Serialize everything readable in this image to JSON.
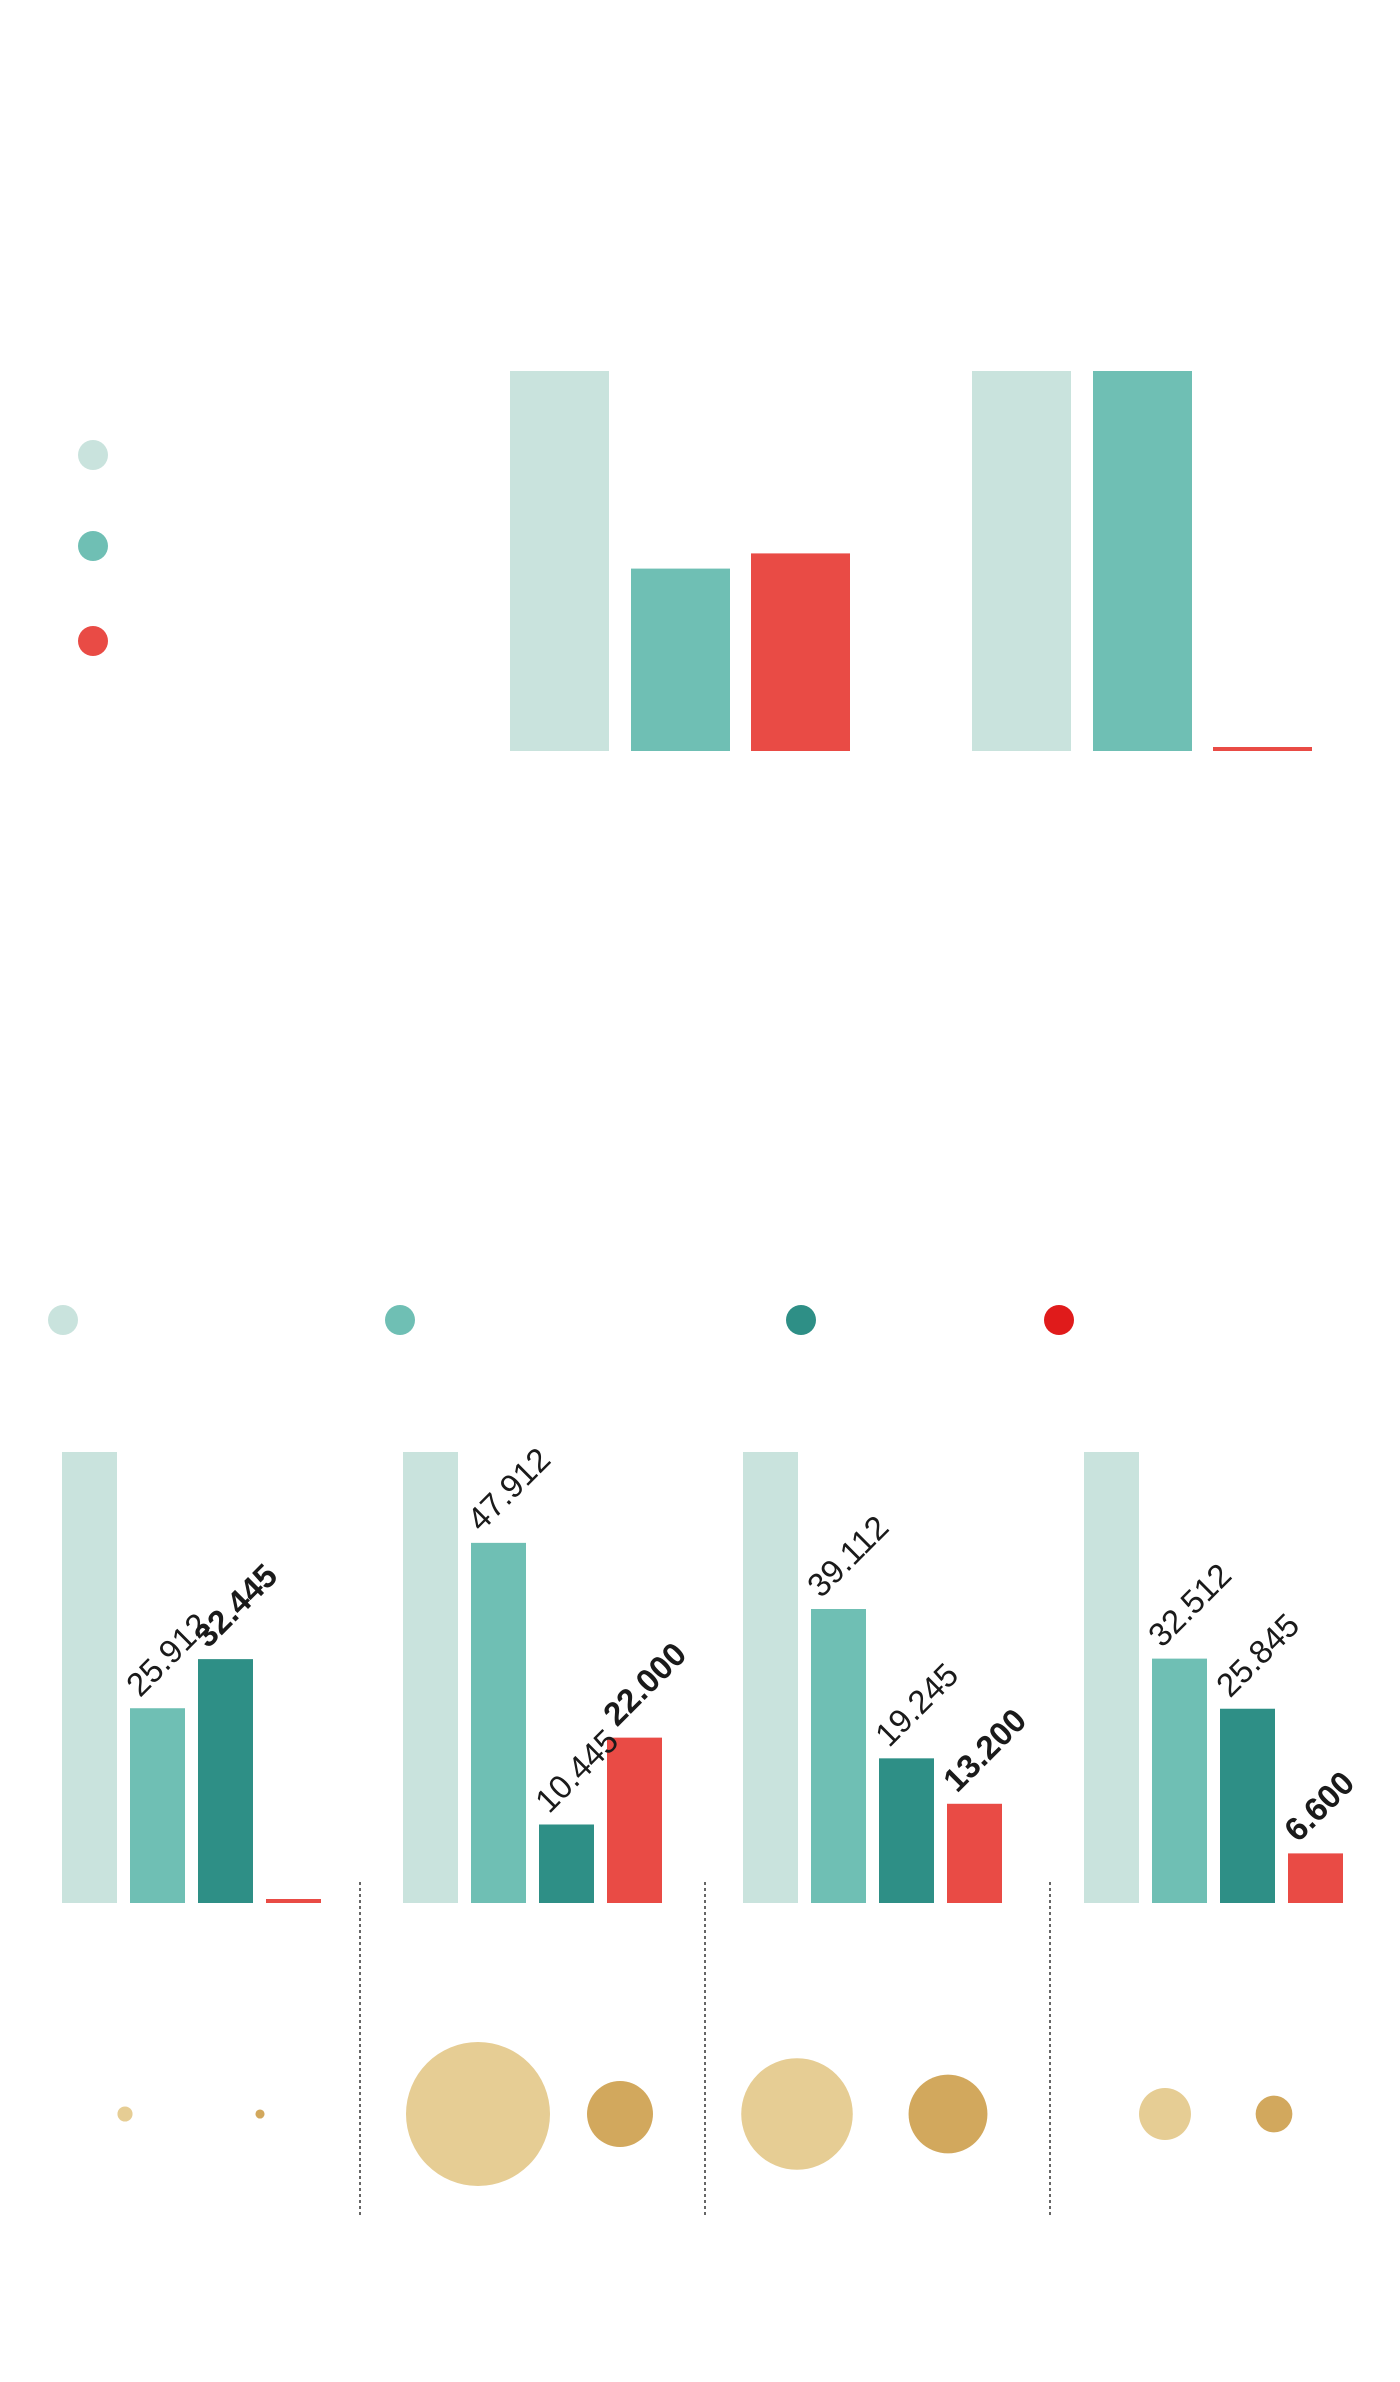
{
  "colors": {
    "light_teal": "#c9e3dd",
    "mid_teal": "#6fbfb4",
    "dark_teal": "#2e8f86",
    "red": "#e94b45",
    "bright_red": "#e01b1b",
    "sand_light": "#e6cd94",
    "sand_dark": "#d2a85d",
    "divider": "#333333"
  },
  "top_legend": [
    {
      "color_key": "light_teal"
    },
    {
      "color_key": "mid_teal"
    },
    {
      "color_key": "red"
    }
  ],
  "bottom_legend": [
    {
      "color_key": "light_teal"
    },
    {
      "color_key": "mid_teal"
    },
    {
      "color_key": "dark_teal"
    },
    {
      "color_key": "bright_red"
    }
  ],
  "chart_data": [
    {
      "type": "bar",
      "title": "",
      "ylim": [
        0,
        100
      ],
      "grid": false,
      "legend": "left",
      "groups": [
        {
          "values": [
            100,
            48,
            52
          ]
        },
        {
          "values": [
            100,
            100,
            1
          ]
        }
      ],
      "series_colors": [
        "light_teal",
        "mid_teal",
        "red"
      ]
    },
    {
      "type": "bar",
      "title": "",
      "ylim": [
        0,
        60000
      ],
      "grid": false,
      "legend": "top",
      "series_colors": [
        "light_teal",
        "mid_teal",
        "dark_teal",
        "red"
      ],
      "groups": [
        {
          "values": [
            60000,
            25912,
            32445,
            500
          ],
          "labels": [
            null,
            "25.912",
            "32.445",
            null
          ],
          "bold": [
            false,
            false,
            true,
            false
          ]
        },
        {
          "values": [
            60000,
            47912,
            10445,
            22000
          ],
          "labels": [
            null,
            "47.912",
            "10.445",
            "22.000"
          ],
          "bold": [
            false,
            false,
            false,
            true
          ]
        },
        {
          "values": [
            60000,
            39112,
            19245,
            13200
          ],
          "labels": [
            null,
            "39.112",
            "19.245",
            "13.200"
          ],
          "bold": [
            false,
            false,
            false,
            true
          ]
        },
        {
          "values": [
            60000,
            32512,
            25845,
            6600
          ],
          "labels": [
            null,
            "32.512",
            "25.845",
            "6.600"
          ],
          "bold": [
            false,
            false,
            false,
            true
          ]
        }
      ]
    },
    {
      "type": "scatter",
      "title": "",
      "note": "bubble pairs under each bottom bar group; value = relative area",
      "groups": [
        {
          "values": [
            0.011,
            0.004
          ]
        },
        {
          "values": [
            1.0,
            0.21
          ]
        },
        {
          "values": [
            0.6,
            0.3
          ]
        },
        {
          "values": [
            0.13,
            0.065
          ]
        }
      ],
      "colors": [
        "sand_light",
        "sand_dark"
      ]
    }
  ]
}
